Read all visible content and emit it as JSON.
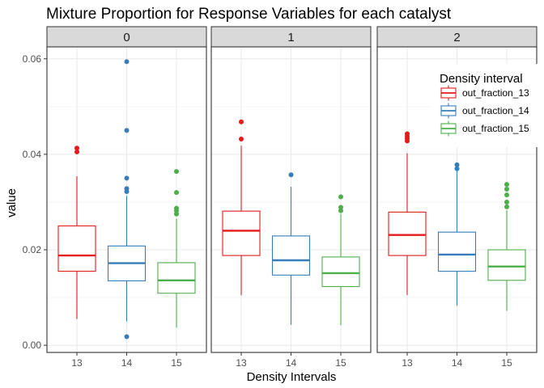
{
  "chart_data": {
    "type": "boxplot",
    "title": "Mixture Proportion for Response Variables for each catalyst",
    "xlabel": "Density Intervals",
    "ylabel": "value",
    "ylim": [
      -0.0015,
      0.0625
    ],
    "yticks": [
      0.0,
      0.02,
      0.04,
      0.06
    ],
    "ytick_labels": [
      "0.00",
      "0.02",
      "0.04",
      "0.06"
    ],
    "categories": [
      "13",
      "14",
      "15"
    ],
    "facets": [
      "0",
      "1",
      "2"
    ],
    "legend": {
      "title": "Density interval",
      "position": "top-right",
      "entries": [
        "out_fraction_13",
        "out_fraction_14",
        "out_fraction_15"
      ]
    },
    "colors": [
      "#e41a1c",
      "#377eb8",
      "#4daf4a"
    ],
    "panels": [
      {
        "facet": "0",
        "boxes": [
          {
            "category": "13",
            "min": 0.0055,
            "q1": 0.0155,
            "median": 0.0188,
            "q3": 0.025,
            "max": 0.0354,
            "outliers": [
              0.0405,
              0.0413
            ]
          },
          {
            "category": "14",
            "min": 0.005,
            "q1": 0.0135,
            "median": 0.0172,
            "q3": 0.0208,
            "max": 0.0313,
            "outliers": [
              0.0018,
              0.0322,
              0.0328,
              0.035,
              0.045,
              0.0594
            ]
          },
          {
            "category": "15",
            "min": 0.0037,
            "q1": 0.0109,
            "median": 0.0136,
            "q3": 0.0173,
            "max": 0.0265,
            "outliers": [
              0.0275,
              0.0282,
              0.0287,
              0.032,
              0.0364
            ]
          }
        ]
      },
      {
        "facet": "1",
        "boxes": [
          {
            "category": "13",
            "min": 0.0105,
            "q1": 0.0188,
            "median": 0.024,
            "q3": 0.0281,
            "max": 0.0418,
            "outliers": [
              0.0432,
              0.0468
            ]
          },
          {
            "category": "14",
            "min": 0.0043,
            "q1": 0.0147,
            "median": 0.0178,
            "q3": 0.0229,
            "max": 0.0332,
            "outliers": [
              0.0357
            ]
          },
          {
            "category": "15",
            "min": 0.0042,
            "q1": 0.0123,
            "median": 0.0151,
            "q3": 0.0185,
            "max": 0.0275,
            "outliers": [
              0.0282,
              0.0289,
              0.0311
            ]
          }
        ]
      },
      {
        "facet": "2",
        "boxes": [
          {
            "category": "13",
            "min": 0.0105,
            "q1": 0.0188,
            "median": 0.0231,
            "q3": 0.0279,
            "max": 0.0402,
            "outliers": [
              0.0428,
              0.0433,
              0.0438,
              0.0443
            ]
          },
          {
            "category": "14",
            "min": 0.0083,
            "q1": 0.0155,
            "median": 0.019,
            "q3": 0.0237,
            "max": 0.0365,
            "outliers": [
              0.037,
              0.0378
            ]
          },
          {
            "category": "15",
            "min": 0.0072,
            "q1": 0.0136,
            "median": 0.0165,
            "q3": 0.02,
            "max": 0.0283,
            "outliers": [
              0.029,
              0.03,
              0.0315,
              0.0327,
              0.0337
            ]
          }
        ]
      }
    ]
  }
}
